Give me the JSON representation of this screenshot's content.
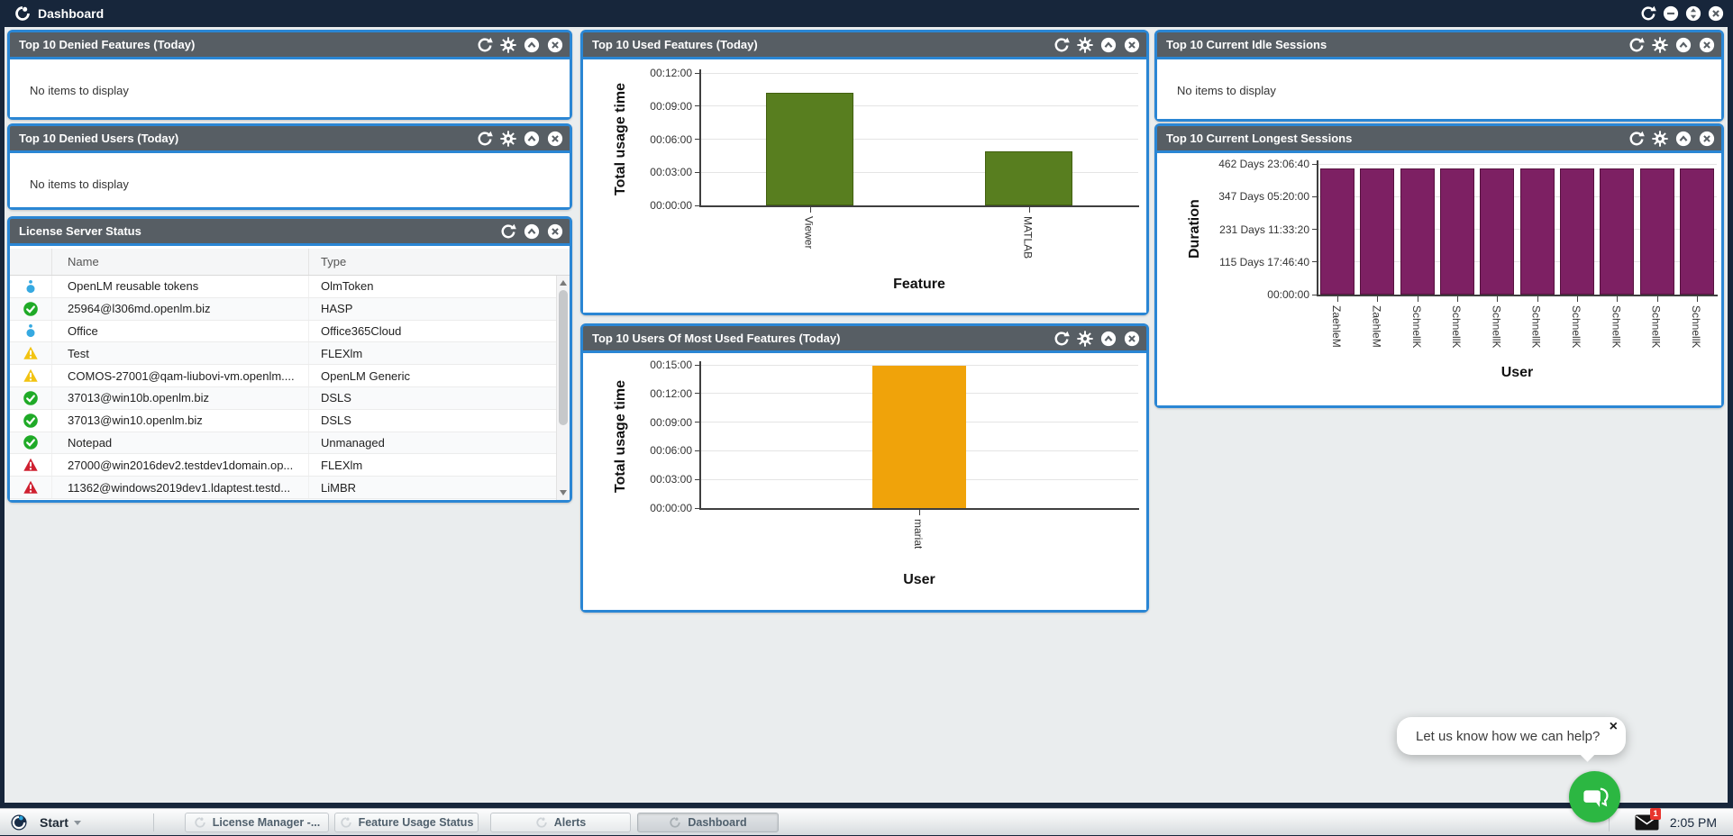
{
  "app": {
    "title": "Dashboard",
    "window_icons": [
      "refresh",
      "minimize",
      "expand",
      "close"
    ]
  },
  "colors": {
    "accent_blue": "#2a86d4",
    "header_gray": "#575e64",
    "topbar_navy": "#17263b",
    "bar_green": "#587e1f",
    "bar_orange": "#f0a30a",
    "bar_purple": "#7d2063",
    "chat_green": "#2cb742",
    "badge_red": "#e8352e"
  },
  "panels": {
    "denied_features": {
      "title": "Top 10 Denied Features (Today)",
      "empty_text": "No items to display",
      "icons": [
        "refresh",
        "settings",
        "collapse",
        "close"
      ]
    },
    "denied_users": {
      "title": "Top 10 Denied Users (Today)",
      "empty_text": "No items to display",
      "icons": [
        "refresh",
        "settings",
        "collapse",
        "close"
      ]
    },
    "license_server_status": {
      "title": "License Server Status",
      "icons": [
        "refresh",
        "collapse",
        "close"
      ],
      "columns": [
        "Name",
        "Type"
      ],
      "rows": [
        {
          "status": "info",
          "name": "OpenLM reusable tokens",
          "type": "OlmToken"
        },
        {
          "status": "ok",
          "name": "25964@l306md.openlm.biz",
          "type": "HASP"
        },
        {
          "status": "info",
          "name": "Office",
          "type": "Office365Cloud"
        },
        {
          "status": "warning",
          "name": "Test",
          "type": "FLEXlm"
        },
        {
          "status": "warning",
          "name": "COMOS-27001@qam-liubovi-vm.openlm....",
          "type": "OpenLM Generic"
        },
        {
          "status": "ok",
          "name": "37013@win10b.openlm.biz",
          "type": "DSLS"
        },
        {
          "status": "ok",
          "name": "37013@win10.openlm.biz",
          "type": "DSLS"
        },
        {
          "status": "ok",
          "name": "Notepad",
          "type": "Unmanaged"
        },
        {
          "status": "error",
          "name": "27000@win2016dev2.testdev1domain.op...",
          "type": "FLEXlm"
        },
        {
          "status": "error",
          "name": "11362@windows2019dev1.ldaptest.testd...",
          "type": "LiMBR"
        }
      ]
    },
    "used_features": {
      "title": "Top 10 Used Features (Today)",
      "icons": [
        "refresh",
        "settings",
        "collapse",
        "close"
      ]
    },
    "top_users": {
      "title": "Top 10 Users Of Most Used Features (Today)",
      "icons": [
        "refresh",
        "settings",
        "collapse",
        "close"
      ]
    },
    "idle_sessions": {
      "title": "Top 10 Current Idle Sessions",
      "empty_text": "No items to display",
      "icons": [
        "refresh",
        "settings",
        "collapse",
        "close"
      ]
    },
    "longest_sessions": {
      "title": "Top 10 Current Longest Sessions",
      "icons": [
        "refresh",
        "settings",
        "collapse",
        "close"
      ]
    }
  },
  "chart_data": [
    {
      "id": "used_features",
      "type": "bar",
      "title": "Top 10 Used Features (Today)",
      "categories": [
        "Viewer",
        "MATLAB"
      ],
      "values_seconds": [
        612,
        295
      ],
      "values_formatted": [
        "00:10:12",
        "00:04:55"
      ],
      "ymax_seconds": 720,
      "yticks": [
        "00:00:00",
        "00:03:00",
        "00:06:00",
        "00:09:00",
        "00:12:00"
      ],
      "ylabel": "Total usage time",
      "xlabel": "Feature",
      "grid": true,
      "legend": "none",
      "bar_color": "#587e1f",
      "bar_border": "#42600f"
    },
    {
      "id": "top_users",
      "type": "bar",
      "title": "Top 10 Users Of Most Used Features (Today)",
      "categories": [
        "mariat"
      ],
      "values_seconds": [
        894
      ],
      "values_formatted": [
        "00:14:54"
      ],
      "ymax_seconds": 900,
      "yticks": [
        "00:00:00",
        "00:03:00",
        "00:06:00",
        "00:09:00",
        "00:12:00",
        "00:15:00"
      ],
      "ylabel": "Total usage time",
      "xlabel": "User",
      "grid": true,
      "legend": "none",
      "bar_color": "#f0a30a",
      "bar_border": ""
    },
    {
      "id": "longest_sessions",
      "type": "bar",
      "title": "Top 10 Current Longest Sessions",
      "categories": [
        "ZaehleM",
        "ZaehleM",
        "SchnellK",
        "SchnellK",
        "SchnellK",
        "SchnellK",
        "SchnellK",
        "SchnellK",
        "SchnellK",
        "SchnellK"
      ],
      "values_seconds": [
        38600000,
        38600000,
        38600000,
        38600000,
        38600000,
        38600000,
        38600000,
        38600000,
        38600000,
        38600000
      ],
      "values_formatted": [
        "446 Days ~17:00:00 (approx, all bars equal)"
      ],
      "ymax_seconds": 40000000,
      "yticks": [
        "00:00:00",
        "115 Days 17:46:40",
        "231 Days 11:33:20",
        "347 Days 05:20:00",
        "462 Days 23:06:40"
      ],
      "ylabel": "Duration",
      "xlabel": "User",
      "grid": true,
      "legend": "none",
      "bar_color": "#7d2063",
      "bar_border": "#57123f"
    }
  ],
  "taskbar": {
    "start_label": "Start",
    "buttons": [
      "License Manager -...",
      "Feature Usage Status",
      "Alerts",
      "Dashboard"
    ],
    "active_button": "Dashboard",
    "unread_badge": "1",
    "clock": "2:05 PM"
  },
  "chat": {
    "message": "Let us know how we can help?",
    "close_label": "×"
  }
}
